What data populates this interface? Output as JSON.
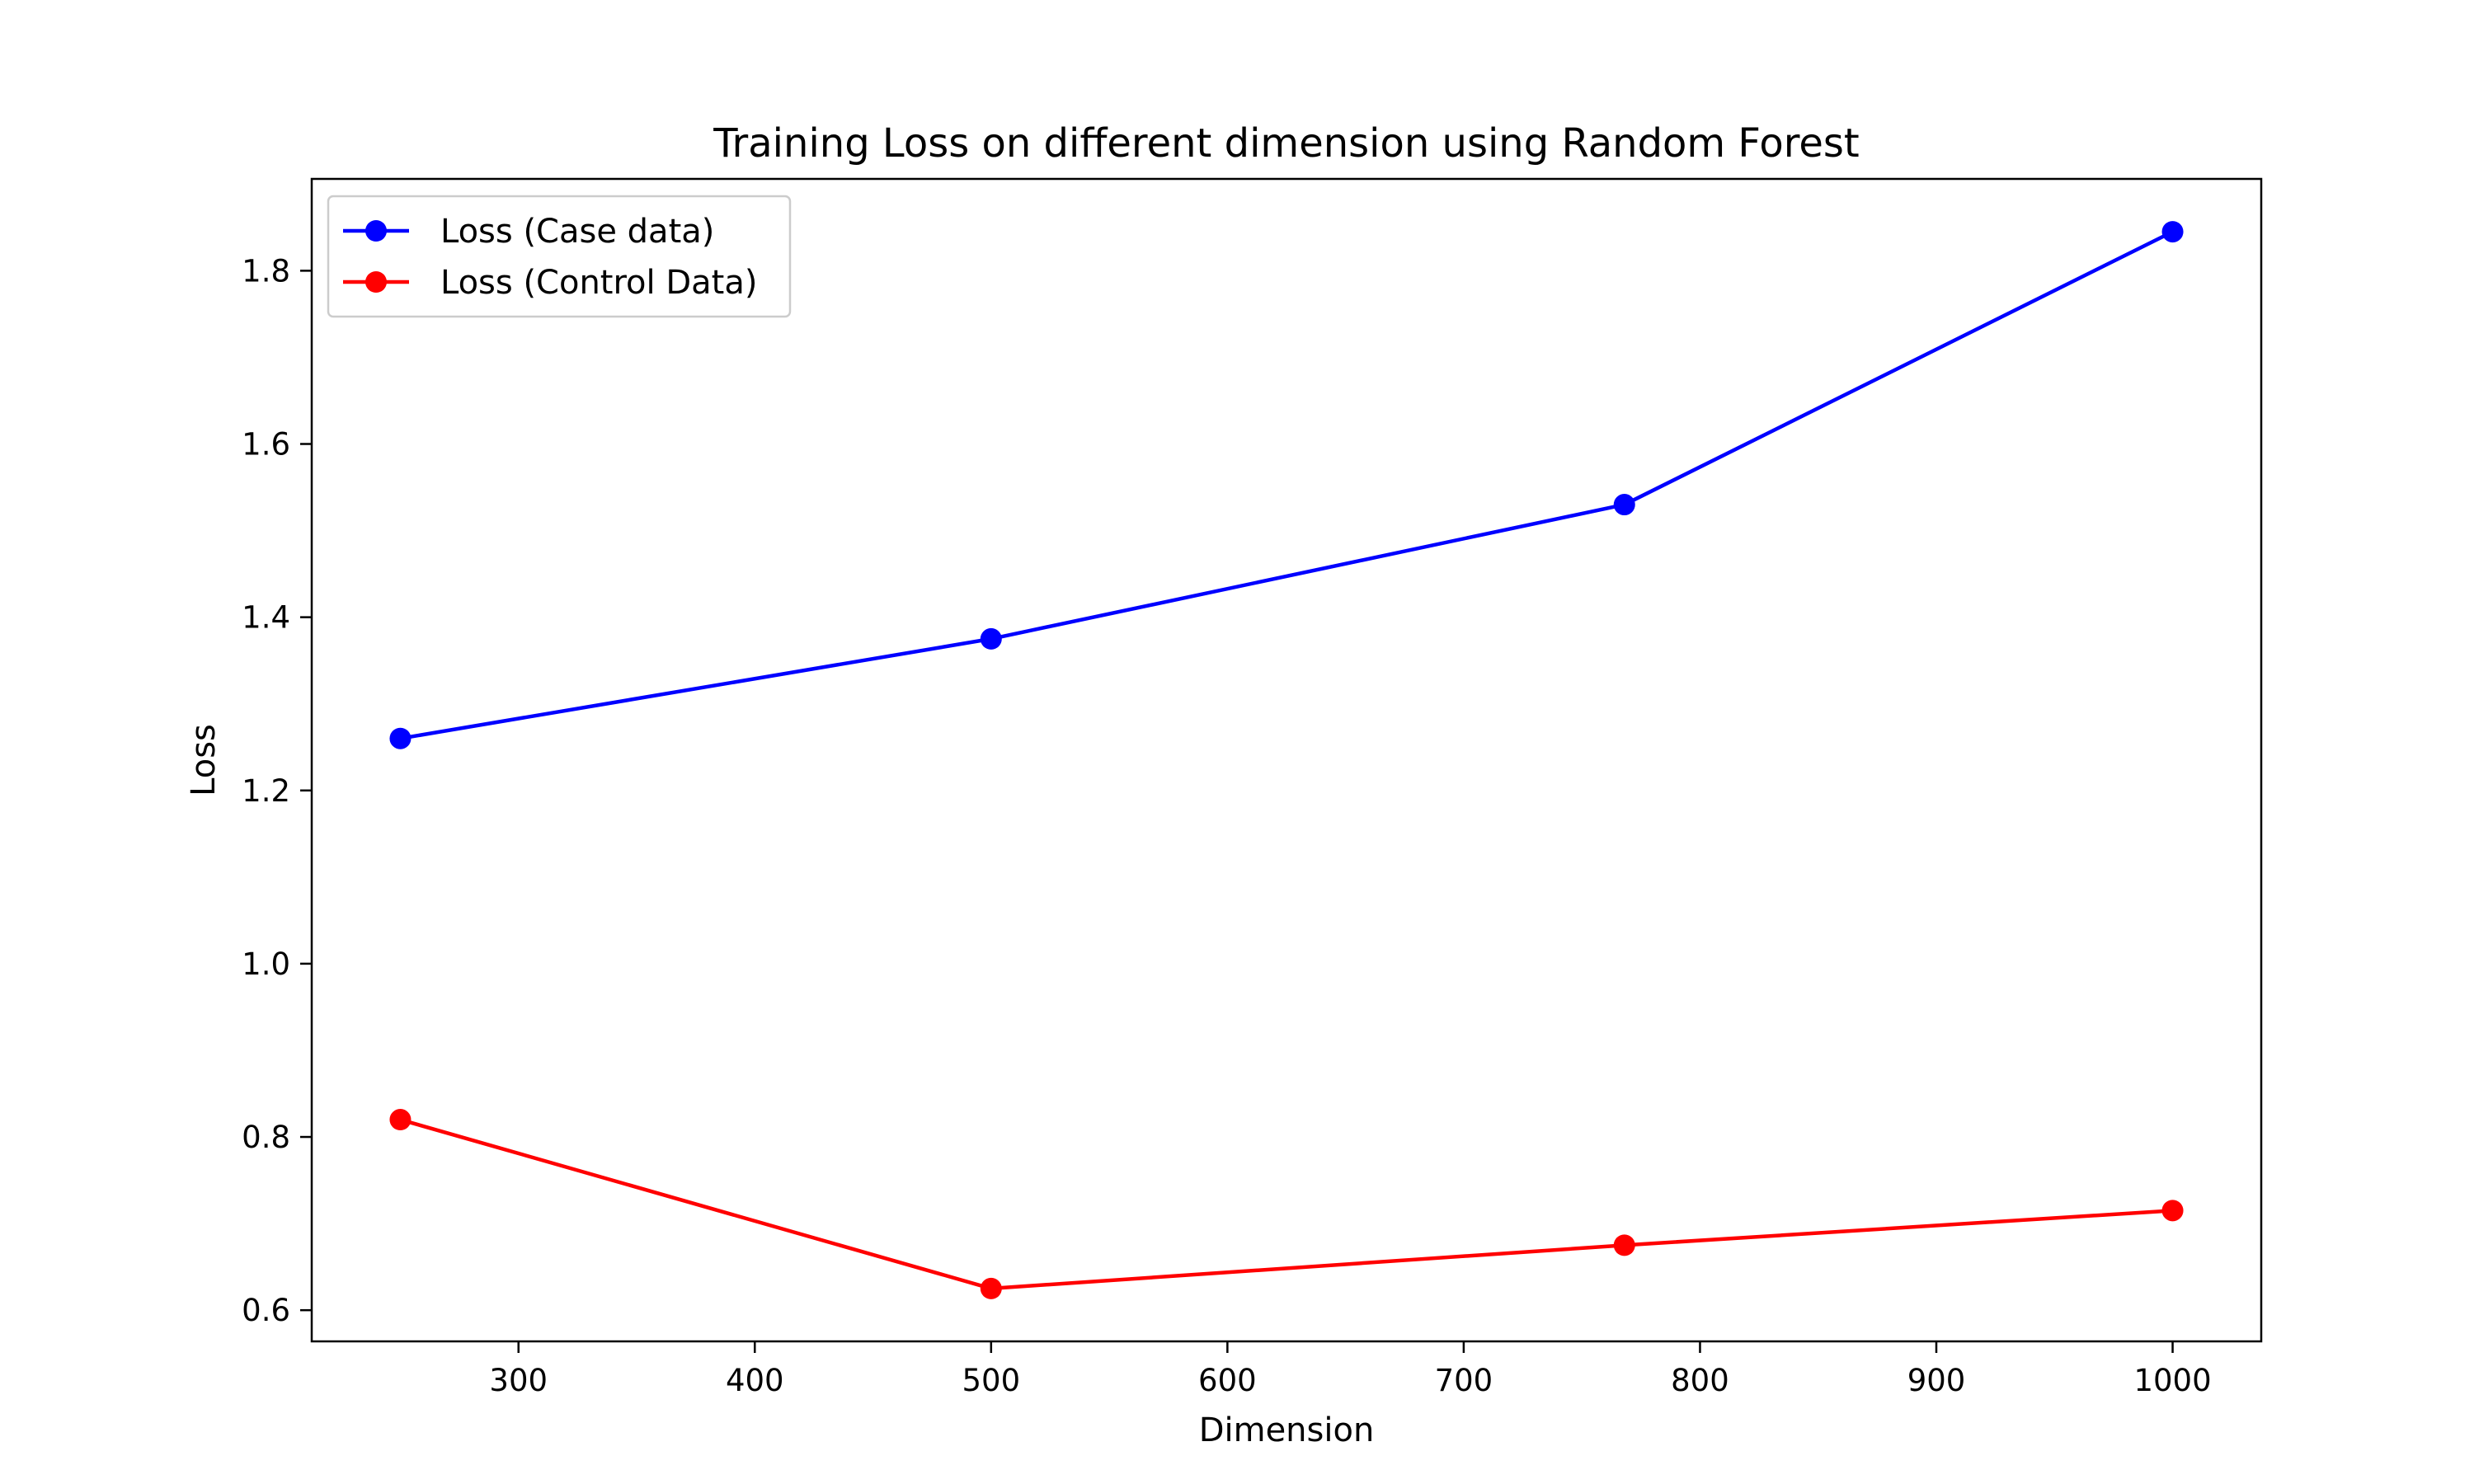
{
  "chart_data": {
    "type": "line",
    "title": "Training Loss on different dimension using Random Forest",
    "xlabel": "Dimension",
    "ylabel": "Loss",
    "x": [
      250,
      500,
      768,
      1000
    ],
    "xlim": [
      212.5,
      1037.5
    ],
    "ylim": [
      0.564,
      1.906
    ],
    "xticks": [
      300,
      400,
      500,
      600,
      700,
      800,
      900,
      1000
    ],
    "yticks": [
      0.6,
      0.8,
      1.0,
      1.2,
      1.4,
      1.6,
      1.8
    ],
    "ytick_labels": [
      "0.6",
      "0.8",
      "1.0",
      "1.2",
      "1.4",
      "1.6",
      "1.8"
    ],
    "grid": false,
    "legend_position": "top-left",
    "series": [
      {
        "name": "Loss (Case data)",
        "color": "#0000ff",
        "marker": "circle",
        "values": [
          1.26,
          1.375,
          1.53,
          1.845
        ]
      },
      {
        "name": "Loss (Control Data)",
        "color": "#ff0000",
        "marker": "circle",
        "values": [
          0.82,
          0.625,
          0.675,
          0.715
        ]
      }
    ]
  }
}
